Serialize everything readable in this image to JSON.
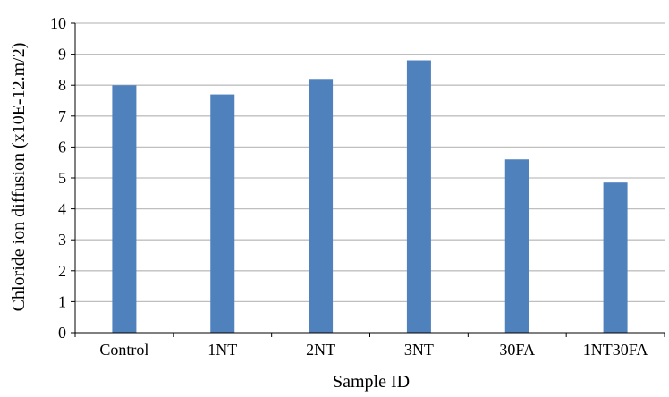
{
  "chart_data": {
    "type": "bar",
    "title": "",
    "xlabel": "Sample ID",
    "ylabel": "Chloride ion diffusion (x10E-12.m/2)",
    "categories": [
      "Control",
      "1NT",
      "2NT",
      "3NT",
      "30FA",
      "1NT30FA"
    ],
    "series": [
      {
        "values": [
          8.0,
          7.7,
          8.2,
          8.8,
          5.6,
          4.85
        ]
      }
    ],
    "ylim": [
      0,
      10
    ],
    "yticks": [
      "0",
      "1",
      "2",
      "3",
      "4",
      "5",
      "6",
      "7",
      "8",
      "9",
      "10"
    ],
    "grid": true,
    "legend": "none",
    "bar_color": "#4F81BD",
    "grid_color": "#BFBFBF"
  }
}
